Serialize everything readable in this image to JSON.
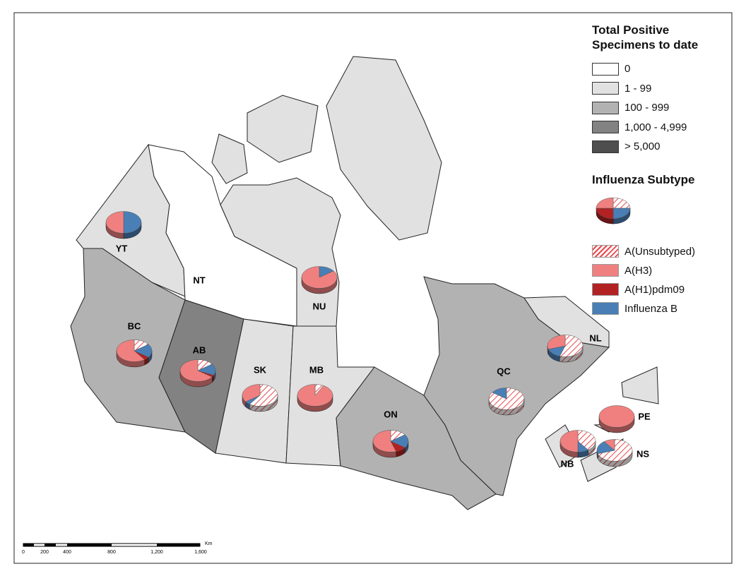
{
  "legend_positive": {
    "title": "Total Positive Specimens to date",
    "items": [
      {
        "label": "0",
        "color": "#ffffff"
      },
      {
        "label": "1 - 99",
        "color": "#e1e1e1"
      },
      {
        "label": "100 - 999",
        "color": "#b2b2b2"
      },
      {
        "label": "1,000 - 4,999",
        "color": "#828282"
      },
      {
        "label": "> 5,000",
        "color": "#4e4e4e"
      }
    ]
  },
  "legend_subtype": {
    "title": "Influenza Subtype",
    "items": [
      {
        "label": "A(Unsubtyped)",
        "color": "#e8474c",
        "pattern": "hatch"
      },
      {
        "label": "A(H3)",
        "color": "#f08080"
      },
      {
        "label": "A(H1)pdm09",
        "color": "#b22222"
      },
      {
        "label": "Influenza B",
        "color": "#4a7fb5"
      }
    ]
  },
  "provinces": [
    {
      "label": "YT",
      "fill": "#e1e1e1",
      "pie": [
        0,
        50,
        0,
        50
      ]
    },
    {
      "label": "NT",
      "fill": "#ffffff",
      "pie": null
    },
    {
      "label": "NU",
      "fill": "#e1e1e1",
      "pie": [
        0,
        85,
        0,
        15
      ]
    },
    {
      "label": "BC",
      "fill": "#b2b2b2",
      "pie": [
        15,
        60,
        5,
        20
      ]
    },
    {
      "label": "AB",
      "fill": "#828282",
      "pie": [
        15,
        65,
        3,
        17
      ]
    },
    {
      "label": "SK",
      "fill": "#e1e1e1",
      "pie": [
        60,
        35,
        0,
        5
      ]
    },
    {
      "label": "MB",
      "fill": "#e1e1e1",
      "pie": [
        8,
        92,
        0,
        0
      ]
    },
    {
      "label": "ON",
      "fill": "#b2b2b2",
      "pie": [
        15,
        55,
        10,
        20
      ]
    },
    {
      "label": "QC",
      "fill": "#b2b2b2",
      "pie": [
        85,
        0,
        0,
        15
      ]
    },
    {
      "label": "NL",
      "fill": "#e1e1e1",
      "pie": [
        55,
        30,
        0,
        15
      ]
    },
    {
      "label": "PE",
      "fill": "#e1e1e1",
      "pie": [
        0,
        100,
        0,
        0
      ]
    },
    {
      "label": "NB",
      "fill": "#e1e1e1",
      "pie": [
        40,
        50,
        0,
        10
      ]
    },
    {
      "label": "NS",
      "fill": "#e1e1e1",
      "pie": [
        70,
        10,
        0,
        20
      ]
    }
  ],
  "scale_bar": {
    "labels": [
      "0",
      "200",
      "400",
      "800",
      "1,200",
      "1,600"
    ],
    "unit": "Km"
  }
}
